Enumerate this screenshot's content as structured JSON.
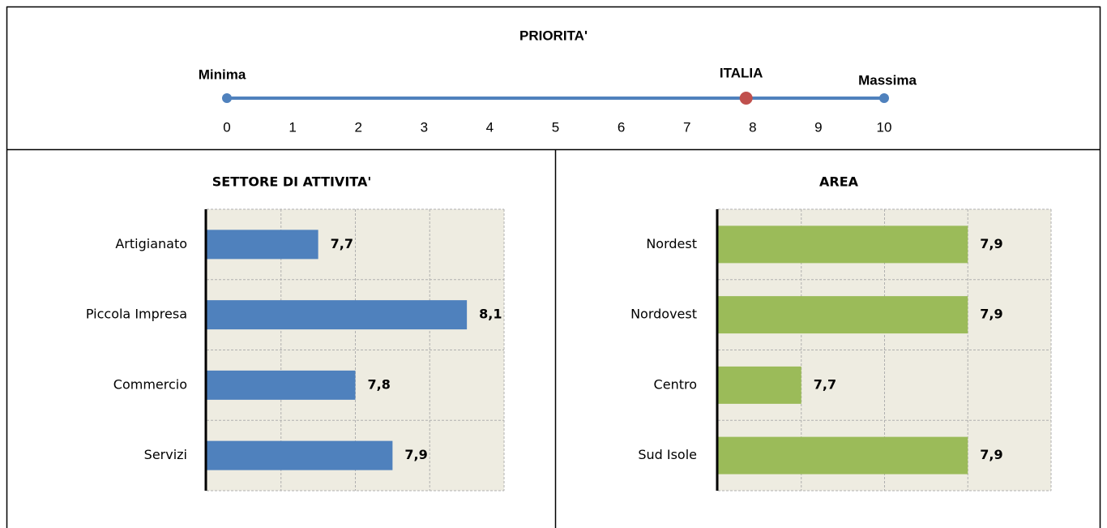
{
  "chart_data": [
    {
      "type": "scale",
      "title": "PRIORITA'",
      "min_label": "Minima",
      "max_label": "Massima",
      "color": "#4f81bd",
      "points": [
        {
          "name": "ITALIA",
          "value": 7.9,
          "color": "#c0504d"
        }
      ],
      "xlim": [
        0,
        10
      ],
      "xticks": [
        0,
        1,
        2,
        3,
        4,
        5,
        6,
        7,
        8,
        9,
        10
      ]
    },
    {
      "type": "hbar",
      "title": "SETTORE DI ATTIVITA'",
      "color": "#4f81bd",
      "categories": [
        "Artigianato",
        "Piccola Impresa",
        "Commercio",
        "Servizi"
      ],
      "values": [
        7.7,
        8.1,
        7.8,
        7.9
      ],
      "value_labels": [
        "7,7",
        "8,1",
        "7,8",
        "7,9"
      ],
      "xlim": [
        7.4,
        8.2
      ],
      "xticks": [
        7.4,
        7.6,
        7.8,
        8,
        8.2
      ],
      "grid": true
    },
    {
      "type": "hbar",
      "title": "AREA",
      "color": "#9bbb59",
      "categories": [
        "Nordest",
        "Nordovest",
        "Centro",
        "Sud Isole"
      ],
      "values": [
        7.9,
        7.9,
        7.7,
        7.9
      ],
      "value_labels": [
        "7,9",
        "7,9",
        "7,7",
        "7,9"
      ],
      "xlim": [
        7.6,
        8.0
      ],
      "xticks": [
        7.6,
        7.7,
        7.8,
        7.9,
        8.0
      ],
      "grid": true
    }
  ]
}
